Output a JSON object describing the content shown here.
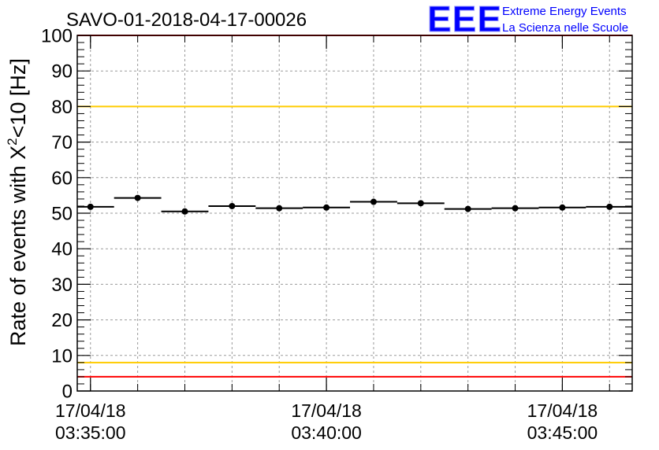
{
  "chart_data": {
    "type": "scatter",
    "title": "SAVO-01-2018-04-17-00026",
    "ylabel": "Rate of events with",
    "ylabel_symbol": "X",
    "ylabel_exponent": "2",
    "ylabel_tail": "<10 [Hz]",
    "ylim": [
      0,
      100
    ],
    "y_ticks": [
      0,
      10,
      20,
      30,
      40,
      50,
      60,
      70,
      80,
      90,
      100
    ],
    "grid": true,
    "x_range_minutes": [
      -0.28,
      11.48
    ],
    "x_tick_labels": [
      {
        "x": 0,
        "date": "17/04/18",
        "time": "03:35:00"
      },
      {
        "x": 5,
        "date": "17/04/18",
        "time": "03:40:00"
      },
      {
        "x": 10,
        "date": "17/04/18",
        "time": "03:45:00"
      }
    ],
    "bin_width_minutes": 1,
    "x": [
      0,
      1,
      2,
      3,
      4,
      5,
      6,
      7,
      8,
      9,
      10,
      11
    ],
    "values": [
      51.8,
      54.3,
      50.5,
      52.0,
      51.4,
      51.6,
      53.2,
      52.8,
      51.2,
      51.4,
      51.6,
      51.8
    ],
    "reference_lines": [
      {
        "y": 100,
        "color": "#ff0000"
      },
      {
        "y": 80,
        "color": "#ffcc00"
      },
      {
        "y": 8,
        "color": "#ffcc00"
      },
      {
        "y": 4,
        "color": "#ff0000"
      }
    ]
  },
  "logo": {
    "letters": "EEE",
    "line1": "Extreme Energy Events",
    "line2": "La Scienza nelle Scuole",
    "color": "#0000ff"
  }
}
